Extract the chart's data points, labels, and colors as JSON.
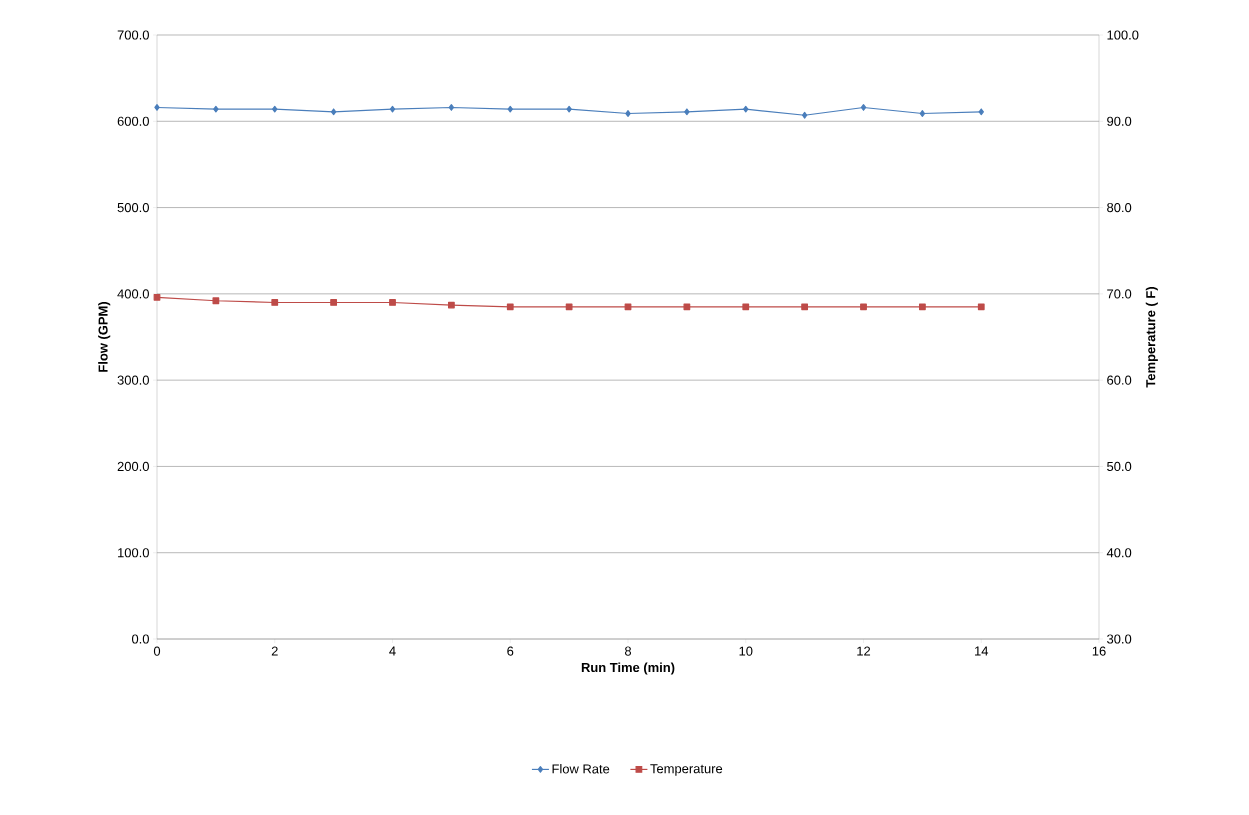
{
  "chart_data": {
    "type": "line",
    "xlabel": "Run Time (min)",
    "ylabel": "Flow (GPM)",
    "y2label": "Temperature ( F)",
    "x": [
      0,
      1,
      2,
      3,
      4,
      5,
      6,
      7,
      8,
      9,
      10,
      11,
      12,
      13,
      14
    ],
    "series": [
      {
        "name": "Flow Rate",
        "color": "#4a7ebb",
        "marker": "diamond",
        "values": [
          616,
          614,
          614,
          611,
          614,
          616,
          614,
          614,
          609,
          611,
          614,
          607,
          616,
          609,
          611
        ]
      },
      {
        "name": "Temperature",
        "color": "#be4b48",
        "marker": "square",
        "axis": "y2",
        "values": [
          69.6,
          69.2,
          69.0,
          69.0,
          69.0,
          68.7,
          68.5,
          68.5,
          68.5,
          68.5,
          68.5,
          68.5,
          68.5,
          68.5,
          68.5
        ]
      }
    ],
    "xlim": [
      0,
      16
    ],
    "xticks": [
      0,
      2,
      4,
      6,
      8,
      10,
      12,
      14,
      16
    ],
    "ylim": [
      0,
      700
    ],
    "yticks": [
      {
        "value": 0,
        "label": "0.0"
      },
      {
        "value": 100,
        "label": "100.0"
      },
      {
        "value": 200,
        "label": "200.0"
      },
      {
        "value": 300,
        "label": "300.0"
      },
      {
        "value": 400,
        "label": "400.0"
      },
      {
        "value": 500,
        "label": "500.0"
      },
      {
        "value": 600,
        "label": "600.0"
      },
      {
        "value": 700,
        "label": "700.0"
      }
    ],
    "y2lim": [
      30,
      100
    ],
    "y2ticks": [
      {
        "value": 30,
        "label": "30.0"
      },
      {
        "value": 40,
        "label": "40.0"
      },
      {
        "value": 50,
        "label": "50.0"
      },
      {
        "value": 60,
        "label": "60.0"
      },
      {
        "value": 70,
        "label": "70.0"
      },
      {
        "value": 80,
        "label": "80.0"
      },
      {
        "value": 90,
        "label": "90.0"
      },
      {
        "value": 100,
        "label": "100.0"
      }
    ],
    "grid": "y",
    "legend": "bottom"
  }
}
